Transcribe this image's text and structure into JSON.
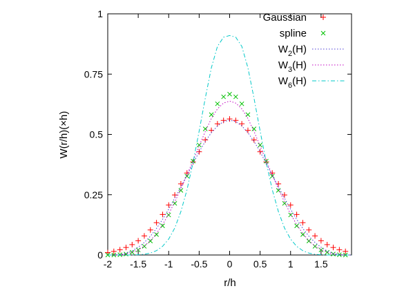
{
  "chart_data": {
    "type": "line",
    "xlabel": "r/h",
    "ylabel": "W(r/h)(×h)",
    "xlim": [
      -2,
      2
    ],
    "ylim": [
      0,
      1
    ],
    "grid": false,
    "legend_position": "top-right",
    "x_ticks": [
      {
        "value": -2,
        "label": "-2"
      },
      {
        "value": -1.5,
        "label": "-1.5"
      },
      {
        "value": -1,
        "label": "-1"
      },
      {
        "value": -0.5,
        "label": "-0.5"
      },
      {
        "value": 0,
        "label": "0"
      },
      {
        "value": 0.5,
        "label": "0.5"
      },
      {
        "value": 1,
        "label": "1"
      },
      {
        "value": 1.5,
        "label": "1.5"
      }
    ],
    "y_ticks": [
      {
        "value": 0,
        "label": "0"
      },
      {
        "value": 0.25,
        "label": "0.25"
      },
      {
        "value": 0.5,
        "label": "0.5"
      },
      {
        "value": 0.75,
        "label": "0.75"
      },
      {
        "value": 1,
        "label": "1"
      }
    ],
    "series": [
      {
        "name": "Gaussian",
        "style": "points",
        "marker": "plus",
        "color": "#ff0000",
        "x": [
          -2.0,
          -1.9,
          -1.8,
          -1.7,
          -1.6,
          -1.5,
          -1.4,
          -1.3,
          -1.2,
          -1.1,
          -1.0,
          -0.9,
          -0.8,
          -0.7,
          -0.6,
          -0.5,
          -0.4,
          -0.3,
          -0.2,
          -0.1,
          0.0,
          0.1,
          0.2,
          0.3,
          0.4,
          0.5,
          0.6,
          0.7,
          0.8,
          0.9,
          1.0,
          1.1,
          1.2,
          1.3,
          1.4,
          1.5,
          1.6,
          1.7,
          1.8,
          1.9
        ],
        "y": [
          0.01,
          0.015,
          0.022,
          0.031,
          0.043,
          0.059,
          0.079,
          0.104,
          0.134,
          0.168,
          0.207,
          0.249,
          0.295,
          0.34,
          0.386,
          0.428,
          0.477,
          0.517,
          0.544,
          0.558,
          0.564,
          0.558,
          0.544,
          0.517,
          0.477,
          0.428,
          0.386,
          0.34,
          0.295,
          0.249,
          0.207,
          0.168,
          0.134,
          0.104,
          0.079,
          0.059,
          0.043,
          0.031,
          0.022,
          0.015
        ]
      },
      {
        "name": "spline",
        "style": "points",
        "marker": "cross",
        "color": "#00c000",
        "x": [
          -2.0,
          -1.9,
          -1.8,
          -1.7,
          -1.6,
          -1.5,
          -1.4,
          -1.3,
          -1.2,
          -1.1,
          -1.0,
          -0.9,
          -0.8,
          -0.7,
          -0.6,
          -0.5,
          -0.4,
          -0.3,
          -0.2,
          -0.1,
          0.0,
          0.1,
          0.2,
          0.3,
          0.4,
          0.5,
          0.6,
          0.7,
          0.8,
          0.9,
          1.0,
          1.1,
          1.2,
          1.3,
          1.4,
          1.5,
          1.6,
          1.7,
          1.8,
          1.9
        ],
        "y": [
          0.0,
          0.0,
          0.001,
          0.004,
          0.011,
          0.021,
          0.036,
          0.058,
          0.085,
          0.121,
          0.166,
          0.214,
          0.268,
          0.327,
          0.389,
          0.456,
          0.523,
          0.582,
          0.627,
          0.656,
          0.667,
          0.656,
          0.627,
          0.582,
          0.523,
          0.456,
          0.389,
          0.327,
          0.268,
          0.214,
          0.166,
          0.121,
          0.085,
          0.058,
          0.036,
          0.021,
          0.011,
          0.004,
          0.001,
          0.0
        ]
      },
      {
        "name": "W2(H)",
        "name_base": "W",
        "name_sub": "2",
        "name_tail": "(H)",
        "style": "dotted",
        "color": "#4b3bd6",
        "x": [
          -2.0,
          -1.9,
          -1.8,
          -1.7,
          -1.6,
          -1.5,
          -1.4,
          -1.3,
          -1.2,
          -1.1,
          -1.0,
          -0.9,
          -0.8,
          -0.7,
          -0.6,
          -0.5,
          -0.4,
          -0.3,
          -0.2,
          -0.1,
          0.0,
          0.1,
          0.2,
          0.3,
          0.4,
          0.5,
          0.6,
          0.7,
          0.8,
          0.9,
          1.0,
          1.1,
          1.2,
          1.3,
          1.4,
          1.5,
          1.6,
          1.7,
          1.8,
          1.9,
          2.0
        ],
        "y": [
          0.0,
          0.0,
          0.002,
          0.007,
          0.017,
          0.032,
          0.052,
          0.078,
          0.11,
          0.148,
          0.19,
          0.236,
          0.283,
          0.33,
          0.379,
          0.428,
          0.471,
          0.507,
          0.535,
          0.553,
          0.559,
          0.553,
          0.535,
          0.507,
          0.471,
          0.428,
          0.379,
          0.33,
          0.283,
          0.236,
          0.19,
          0.148,
          0.11,
          0.078,
          0.052,
          0.032,
          0.017,
          0.007,
          0.002,
          0.0,
          0.0
        ]
      },
      {
        "name": "W3(H)",
        "name_base": "W",
        "name_sub": "3",
        "name_tail": "(H)",
        "style": "dotted",
        "color": "#c000c0",
        "x": [
          -2.0,
          -1.9,
          -1.8,
          -1.7,
          -1.6,
          -1.5,
          -1.4,
          -1.3,
          -1.2,
          -1.1,
          -1.0,
          -0.9,
          -0.8,
          -0.7,
          -0.6,
          -0.5,
          -0.4,
          -0.3,
          -0.2,
          -0.1,
          0.0,
          0.1,
          0.2,
          0.3,
          0.4,
          0.5,
          0.6,
          0.7,
          0.8,
          0.9,
          1.0,
          1.1,
          1.2,
          1.3,
          1.4,
          1.5,
          1.6,
          1.7,
          1.8,
          1.9,
          2.0
        ],
        "y": [
          0.0,
          0.0,
          0.001,
          0.004,
          0.011,
          0.021,
          0.037,
          0.06,
          0.089,
          0.126,
          0.17,
          0.22,
          0.274,
          0.332,
          0.391,
          0.452,
          0.512,
          0.566,
          0.606,
          0.63,
          0.638,
          0.63,
          0.606,
          0.566,
          0.512,
          0.452,
          0.391,
          0.332,
          0.274,
          0.22,
          0.17,
          0.126,
          0.089,
          0.06,
          0.037,
          0.021,
          0.011,
          0.004,
          0.001,
          0.0,
          0.0
        ]
      },
      {
        "name": "W6(H)",
        "name_base": "W",
        "name_sub": "6",
        "name_tail": "(H)",
        "style": "dashdot",
        "color": "#00c8c8",
        "x": [
          -2.0,
          -1.9,
          -1.8,
          -1.7,
          -1.6,
          -1.5,
          -1.4,
          -1.3,
          -1.2,
          -1.1,
          -1.0,
          -0.9,
          -0.8,
          -0.7,
          -0.6,
          -0.5,
          -0.4,
          -0.3,
          -0.2,
          -0.1,
          0.0,
          0.1,
          0.2,
          0.3,
          0.4,
          0.5,
          0.6,
          0.7,
          0.8,
          0.9,
          1.0,
          1.1,
          1.2,
          1.3,
          1.4,
          1.5,
          1.6,
          1.7,
          1.8,
          1.9,
          2.0
        ],
        "y": [
          0.0,
          0.0,
          0.0,
          0.0,
          0.0,
          0.001,
          0.003,
          0.008,
          0.018,
          0.036,
          0.066,
          0.112,
          0.18,
          0.27,
          0.384,
          0.514,
          0.65,
          0.776,
          0.865,
          0.903,
          0.91,
          0.903,
          0.865,
          0.776,
          0.65,
          0.514,
          0.384,
          0.27,
          0.18,
          0.112,
          0.066,
          0.036,
          0.018,
          0.008,
          0.003,
          0.001,
          0.0,
          0.0,
          0.0,
          0.0,
          0.0
        ]
      }
    ]
  }
}
